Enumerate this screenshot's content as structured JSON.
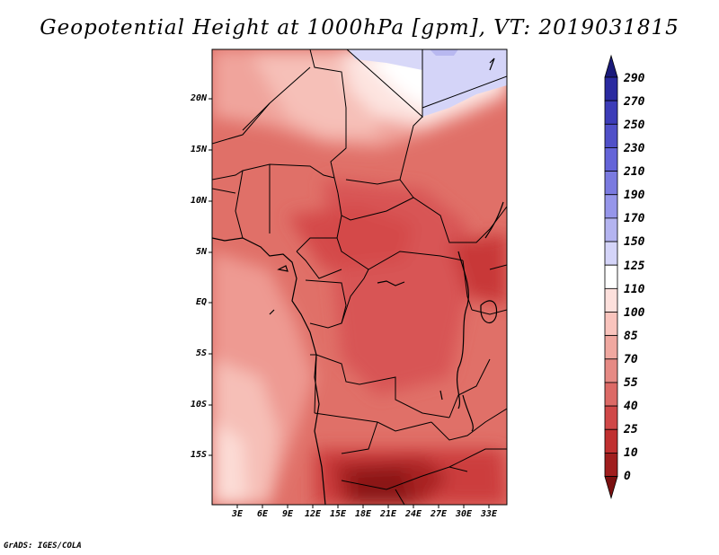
{
  "title": "Geopotential Height at 1000hPa [gpm], VT: 2019031815",
  "lat_labels": [
    "20N",
    "15N",
    "10N",
    "5N",
    "EQ",
    "5S",
    "10S",
    "15S"
  ],
  "lon_labels": [
    "3E",
    "6E",
    "9E",
    "12E",
    "15E",
    "18E",
    "21E",
    "24E",
    "27E",
    "30E",
    "33E"
  ],
  "colorbar": {
    "levels": [
      "290",
      "270",
      "250",
      "230",
      "210",
      "190",
      "170",
      "150",
      "125",
      "110",
      "100",
      "85",
      "70",
      "55",
      "40",
      "25",
      "10",
      "0"
    ],
    "colors": [
      "#1a1a7a",
      "#2a2aa0",
      "#3c3cb8",
      "#5050c8",
      "#6464d8",
      "#7a7ae0",
      "#9696ea",
      "#b4b4f0",
      "#d4d4f8",
      "#ffffff",
      "#fde0dc",
      "#f9c4bd",
      "#f0a8a0",
      "#e68a84",
      "#dc6a66",
      "#d04848",
      "#c03030",
      "#a01e1e",
      "#7a1010"
    ]
  },
  "credit": "GrADS: IGES/COLA"
}
